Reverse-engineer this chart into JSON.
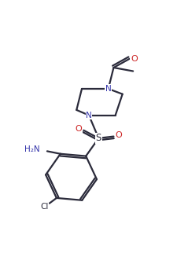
{
  "bg_color": "#ffffff",
  "line_color": "#2b2b3b",
  "N_color": "#3333aa",
  "O_color": "#cc2222",
  "S_color": "#2b2b3b",
  "figsize": [
    2.26,
    3.27
  ],
  "dpi": 100,
  "xlim": [
    0,
    10
  ],
  "ylim": [
    0,
    14.5
  ]
}
